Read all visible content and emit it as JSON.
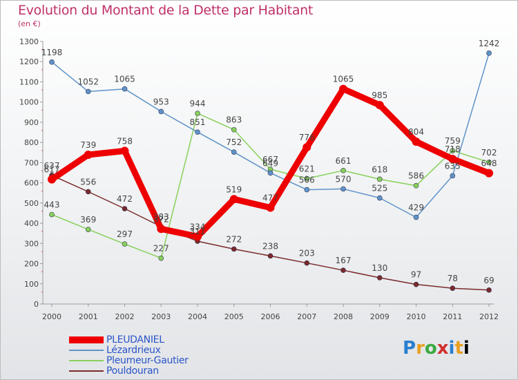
{
  "chart_data": {
    "type": "line",
    "title": "Evolution du Montant de la Dette par Habitant",
    "subtitle": "(en €)",
    "x": [
      "2000",
      "2001",
      "2002",
      "2003",
      "2004",
      "2005",
      "2006",
      "2007",
      "2008",
      "2009",
      "2010",
      "2011",
      "2012"
    ],
    "ylim": [
      0,
      1300
    ],
    "yticks": [
      0,
      100,
      200,
      300,
      400,
      500,
      600,
      700,
      800,
      900,
      1000,
      1100,
      1200,
      1300
    ],
    "grid": false,
    "legend_position": "bottom-left",
    "series": [
      {
        "name": "PLEUDANIEL",
        "color": "#ee0000",
        "values": [
          617,
          739,
          758,
          372,
          334,
          519,
          477,
          776,
          1065,
          985,
          804,
          718,
          648
        ]
      },
      {
        "name": "Lézardrieux",
        "color": "#5f93c8",
        "values": [
          1198,
          1052,
          1065,
          953,
          851,
          752,
          649,
          566,
          570,
          525,
          429,
          635,
          1242
        ]
      },
      {
        "name": "Pleumeur-Gautier",
        "color": "#88d05a",
        "values": [
          443,
          369,
          297,
          227,
          944,
          863,
          667,
          621,
          661,
          618,
          586,
          759,
          702
        ]
      },
      {
        "name": "Pouldouran",
        "color": "#7a2a2a",
        "values": [
          637,
          556,
          472,
          383,
          311,
          272,
          238,
          203,
          167,
          130,
          97,
          78,
          69
        ]
      }
    ]
  },
  "logo": {
    "letters": [
      "P",
      "r",
      "o",
      "x",
      "i",
      "t",
      "i"
    ]
  }
}
